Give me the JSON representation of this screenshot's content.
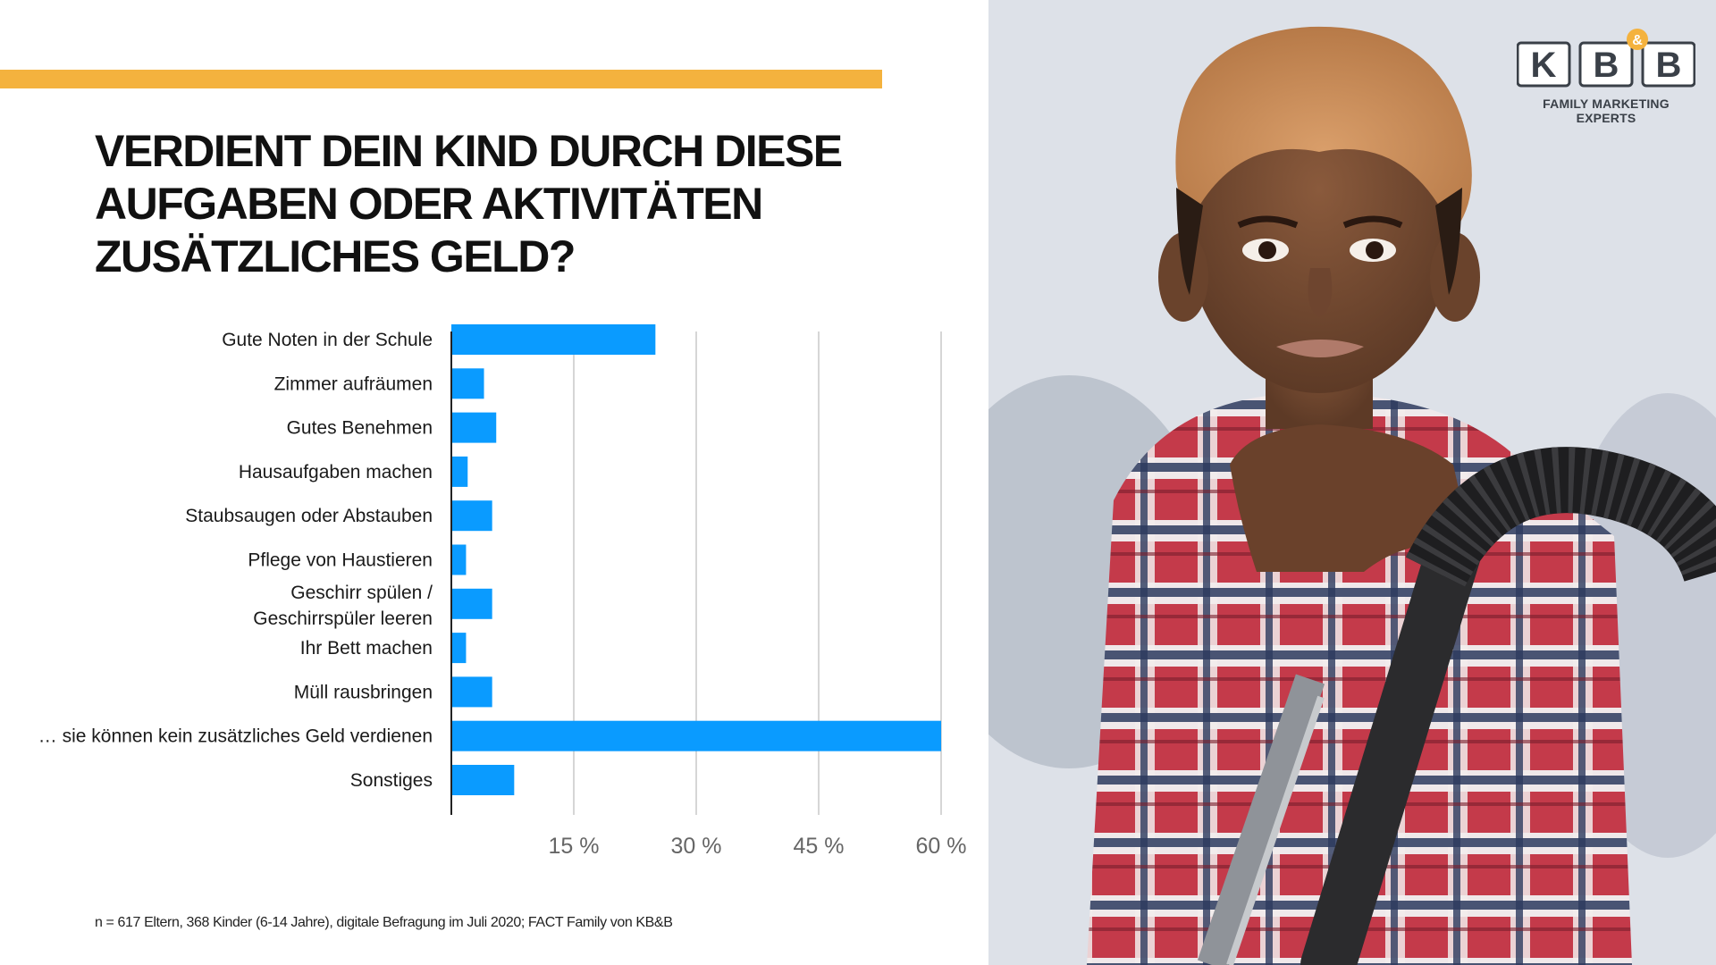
{
  "title_lines": [
    "VERDIENT DEIN KIND DURCH DIESE",
    "AUFGABEN ODER AKTIVITÄTEN",
    "ZUSÄTZLICHES GELD?"
  ],
  "colors": {
    "accent": "#F4B23E",
    "bar": "#0A9BFF",
    "gridline": "#C8C8C8",
    "axis": "#222222"
  },
  "chart_data": {
    "type": "bar",
    "orientation": "horizontal",
    "categories": [
      "Gute Noten in der Schule",
      "Zimmer aufräumen",
      "Gutes Benehmen",
      "Hausaufgaben machen",
      "Staubsaugen oder Abstauben",
      "Pflege von Haustieren",
      "Geschirr spülen / Geschirrspüler leeren",
      "Ihr Bett machen",
      "Müll rausbringen",
      "… sie können kein zusätzliches Geld verdienen",
      "Sonstiges"
    ],
    "values": [
      25,
      4,
      5.5,
      2,
      5,
      1.8,
      5,
      1.8,
      5,
      60,
      7.7
    ],
    "xlim": [
      0,
      60
    ],
    "xticks": [
      15,
      30,
      45,
      60
    ],
    "xtick_labels": [
      "15 %",
      "30 %",
      "45 %",
      "60 %"
    ],
    "grid": true
  },
  "footnote": "n = 617 Eltern, 368 Kinder (6-14 Jahre), digitale Befragung im Juli 2020; FACT Family von KB&B",
  "logo": {
    "letters": [
      "K",
      "B",
      "B"
    ],
    "ampersand": "&",
    "tagline": "FAMILY MARKETING EXPERTS"
  }
}
